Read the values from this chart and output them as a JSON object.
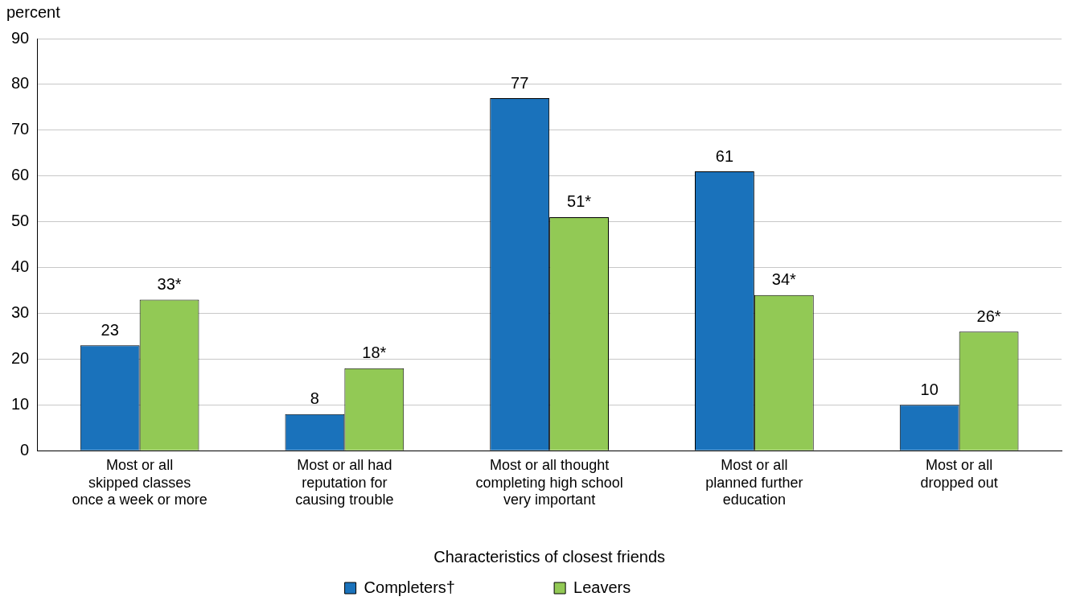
{
  "chart_data": {
    "type": "bar",
    "ylabel": "percent",
    "xlabel": "Characteristics of closest friends",
    "categories": [
      "Most or all\nskipped classes\nonce a week or more",
      "Most or all had\nreputation for\ncausing trouble",
      "Most or all thought\ncompleting high school\nvery important",
      "Most or all\nplanned further\neducation",
      "Most or all\ndropped out"
    ],
    "series": [
      {
        "name": "Completers†",
        "color": "#1a72bb",
        "values": [
          23,
          8,
          77,
          61,
          10
        ],
        "value_labels": [
          "23",
          "8",
          "77",
          "61",
          "10"
        ]
      },
      {
        "name": "Leavers",
        "color": "#92c955",
        "values": [
          33,
          18,
          51,
          34,
          26
        ],
        "value_labels": [
          "33*",
          "18*",
          "51*",
          "34*",
          "26*"
        ]
      }
    ],
    "ylim": [
      0,
      90
    ],
    "yticks": [
      0,
      10,
      20,
      30,
      40,
      50,
      60,
      70,
      80,
      90
    ],
    "grid": "y",
    "legend": "bottom"
  }
}
